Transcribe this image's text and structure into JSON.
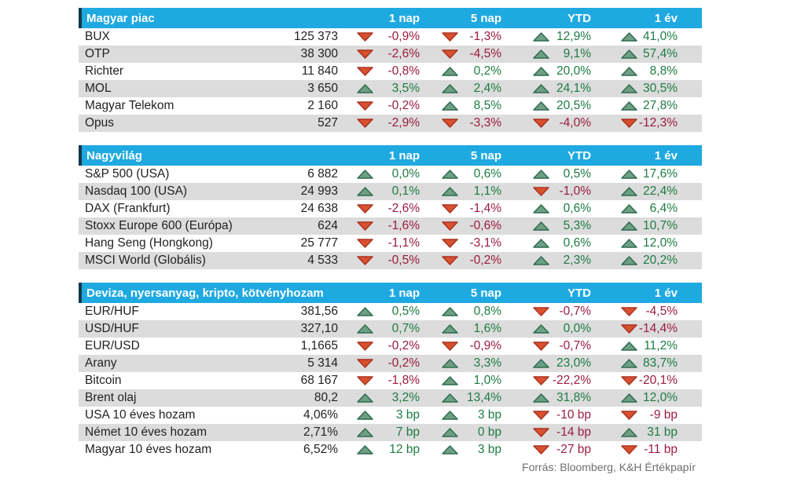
{
  "colors": {
    "header_bg": "#1fa9e1",
    "header_notch": "#17374a",
    "row_alt_bg": "#dcdcdc",
    "text": "#231f20",
    "positive_text": "#1e7b45",
    "negative_text": "#9b1c3f",
    "up_triangle_fill": "#6e9f85",
    "up_triangle_stroke": "#2f6b4f",
    "down_triangle_fill": "#d8512f",
    "down_triangle_stroke": "#a93220",
    "footer_text": "#6d6e71"
  },
  "change_columns": [
    "1 nap",
    "5 nap",
    "YTD",
    "1 év"
  ],
  "tables": [
    {
      "title": "Magyar piac",
      "rows": [
        {
          "name": "BUX",
          "value": "125 373",
          "changes": [
            {
              "dir": "down",
              "text": "-0,9%"
            },
            {
              "dir": "down",
              "text": "-1,3%"
            },
            {
              "dir": "up",
              "text": "12,9%"
            },
            {
              "dir": "up",
              "text": "41,0%"
            }
          ]
        },
        {
          "name": "OTP",
          "value": "38 300",
          "changes": [
            {
              "dir": "down",
              "text": "-2,6%"
            },
            {
              "dir": "down",
              "text": "-4,5%"
            },
            {
              "dir": "up",
              "text": "9,1%"
            },
            {
              "dir": "up",
              "text": "57,4%"
            }
          ]
        },
        {
          "name": "Richter",
          "value": "11 840",
          "changes": [
            {
              "dir": "down",
              "text": "-0,8%"
            },
            {
              "dir": "up",
              "text": "0,2%"
            },
            {
              "dir": "up",
              "text": "20,0%"
            },
            {
              "dir": "up",
              "text": "8,8%"
            }
          ]
        },
        {
          "name": "MOL",
          "value": "3 650",
          "changes": [
            {
              "dir": "up",
              "text": "3,5%"
            },
            {
              "dir": "up",
              "text": "2,4%"
            },
            {
              "dir": "up",
              "text": "24,1%"
            },
            {
              "dir": "up",
              "text": "30,5%"
            }
          ]
        },
        {
          "name": "Magyar Telekom",
          "value": "2 160",
          "changes": [
            {
              "dir": "down",
              "text": "-0,2%"
            },
            {
              "dir": "up",
              "text": "8,5%"
            },
            {
              "dir": "up",
              "text": "20,5%"
            },
            {
              "dir": "up",
              "text": "27,8%"
            }
          ]
        },
        {
          "name": "Opus",
          "value": "527",
          "changes": [
            {
              "dir": "down",
              "text": "-2,9%"
            },
            {
              "dir": "down",
              "text": "-3,3%"
            },
            {
              "dir": "down",
              "text": "-4,0%"
            },
            {
              "dir": "down",
              "text": "-12,3%"
            }
          ]
        }
      ]
    },
    {
      "title": "Nagyvilág",
      "rows": [
        {
          "name": "S&P 500 (USA)",
          "value": "6 882",
          "changes": [
            {
              "dir": "up",
              "text": "0,0%"
            },
            {
              "dir": "up",
              "text": "0,6%"
            },
            {
              "dir": "up",
              "text": "0,5%"
            },
            {
              "dir": "up",
              "text": "17,6%"
            }
          ]
        },
        {
          "name": "Nasdaq 100 (USA)",
          "value": "24 993",
          "changes": [
            {
              "dir": "up",
              "text": "0,1%"
            },
            {
              "dir": "up",
              "text": "1,1%"
            },
            {
              "dir": "down",
              "text": "-1,0%"
            },
            {
              "dir": "up",
              "text": "22,4%"
            }
          ]
        },
        {
          "name": "DAX (Frankfurt)",
          "value": "24 638",
          "changes": [
            {
              "dir": "down",
              "text": "-2,6%"
            },
            {
              "dir": "down",
              "text": "-1,4%"
            },
            {
              "dir": "up",
              "text": "0,6%"
            },
            {
              "dir": "up",
              "text": "6,4%"
            }
          ]
        },
        {
          "name": "Stoxx Europe 600 (Európa)",
          "value": "624",
          "changes": [
            {
              "dir": "down",
              "text": "-1,6%"
            },
            {
              "dir": "down",
              "text": "-0,6%"
            },
            {
              "dir": "up",
              "text": "5,3%"
            },
            {
              "dir": "up",
              "text": "10,7%"
            }
          ]
        },
        {
          "name": "Hang Seng (Hongkong)",
          "value": "25 777",
          "changes": [
            {
              "dir": "down",
              "text": "-1,1%"
            },
            {
              "dir": "down",
              "text": "-3,1%"
            },
            {
              "dir": "up",
              "text": "0,6%"
            },
            {
              "dir": "up",
              "text": "12,0%"
            }
          ]
        },
        {
          "name": "MSCI World (Globális)",
          "value": "4 533",
          "changes": [
            {
              "dir": "down",
              "text": "-0,5%"
            },
            {
              "dir": "down",
              "text": "-0,2%"
            },
            {
              "dir": "up",
              "text": "2,3%"
            },
            {
              "dir": "up",
              "text": "20,2%"
            }
          ]
        }
      ]
    },
    {
      "title": "Deviza, nyersanyag, kripto, kötvényhozam",
      "rows": [
        {
          "name": "EUR/HUF",
          "value": "381,56",
          "changes": [
            {
              "dir": "up",
              "text": "0,5%"
            },
            {
              "dir": "up",
              "text": "0,8%"
            },
            {
              "dir": "down",
              "text": "-0,7%"
            },
            {
              "dir": "down",
              "text": "-4,5%"
            }
          ]
        },
        {
          "name": "USD/HUF",
          "value": "327,10",
          "changes": [
            {
              "dir": "up",
              "text": "0,7%"
            },
            {
              "dir": "up",
              "text": "1,6%"
            },
            {
              "dir": "up",
              "text": "0,0%"
            },
            {
              "dir": "down",
              "text": "-14,4%"
            }
          ]
        },
        {
          "name": "EUR/USD",
          "value": "1,1665",
          "changes": [
            {
              "dir": "down",
              "text": "-0,2%"
            },
            {
              "dir": "down",
              "text": "-0,9%"
            },
            {
              "dir": "down",
              "text": "-0,7%"
            },
            {
              "dir": "up",
              "text": "11,2%"
            }
          ]
        },
        {
          "name": "Arany",
          "value": "5 314",
          "changes": [
            {
              "dir": "down",
              "text": "-0,2%"
            },
            {
              "dir": "up",
              "text": "3,3%"
            },
            {
              "dir": "up",
              "text": "23,0%"
            },
            {
              "dir": "up",
              "text": "83,7%"
            }
          ]
        },
        {
          "name": "Bitcoin",
          "value": "68 167",
          "changes": [
            {
              "dir": "down",
              "text": "-1,8%"
            },
            {
              "dir": "up",
              "text": "1,0%"
            },
            {
              "dir": "down",
              "text": "-22,2%"
            },
            {
              "dir": "down",
              "text": "-20,1%"
            }
          ]
        },
        {
          "name": "Brent olaj",
          "value": "80,2",
          "changes": [
            {
              "dir": "up",
              "text": "3,2%"
            },
            {
              "dir": "up",
              "text": "13,4%"
            },
            {
              "dir": "up",
              "text": "31,8%"
            },
            {
              "dir": "up",
              "text": "12,0%"
            }
          ]
        },
        {
          "name": "USA 10 éves hozam",
          "value": "4,06%",
          "changes": [
            {
              "dir": "up",
              "text": "3 bp"
            },
            {
              "dir": "up",
              "text": "3 bp"
            },
            {
              "dir": "down",
              "text": "-10 bp"
            },
            {
              "dir": "down",
              "text": "-9 bp"
            }
          ]
        },
        {
          "name": "Német 10 éves hozam",
          "value": "2,71%",
          "changes": [
            {
              "dir": "up",
              "text": "7 bp"
            },
            {
              "dir": "up",
              "text": "0 bp"
            },
            {
              "dir": "down",
              "text": "-14 bp"
            },
            {
              "dir": "up",
              "text": "31 bp"
            }
          ]
        },
        {
          "name": "Magyar 10 éves hozam",
          "value": "6,52%",
          "changes": [
            {
              "dir": "up",
              "text": "12 bp"
            },
            {
              "dir": "up",
              "text": "3 bp"
            },
            {
              "dir": "down",
              "text": "-27 bp"
            },
            {
              "dir": "down",
              "text": "-11 bp"
            }
          ]
        }
      ]
    }
  ],
  "footer": {
    "text": "Forrás: Bloomberg, K&H Értékpapír"
  }
}
